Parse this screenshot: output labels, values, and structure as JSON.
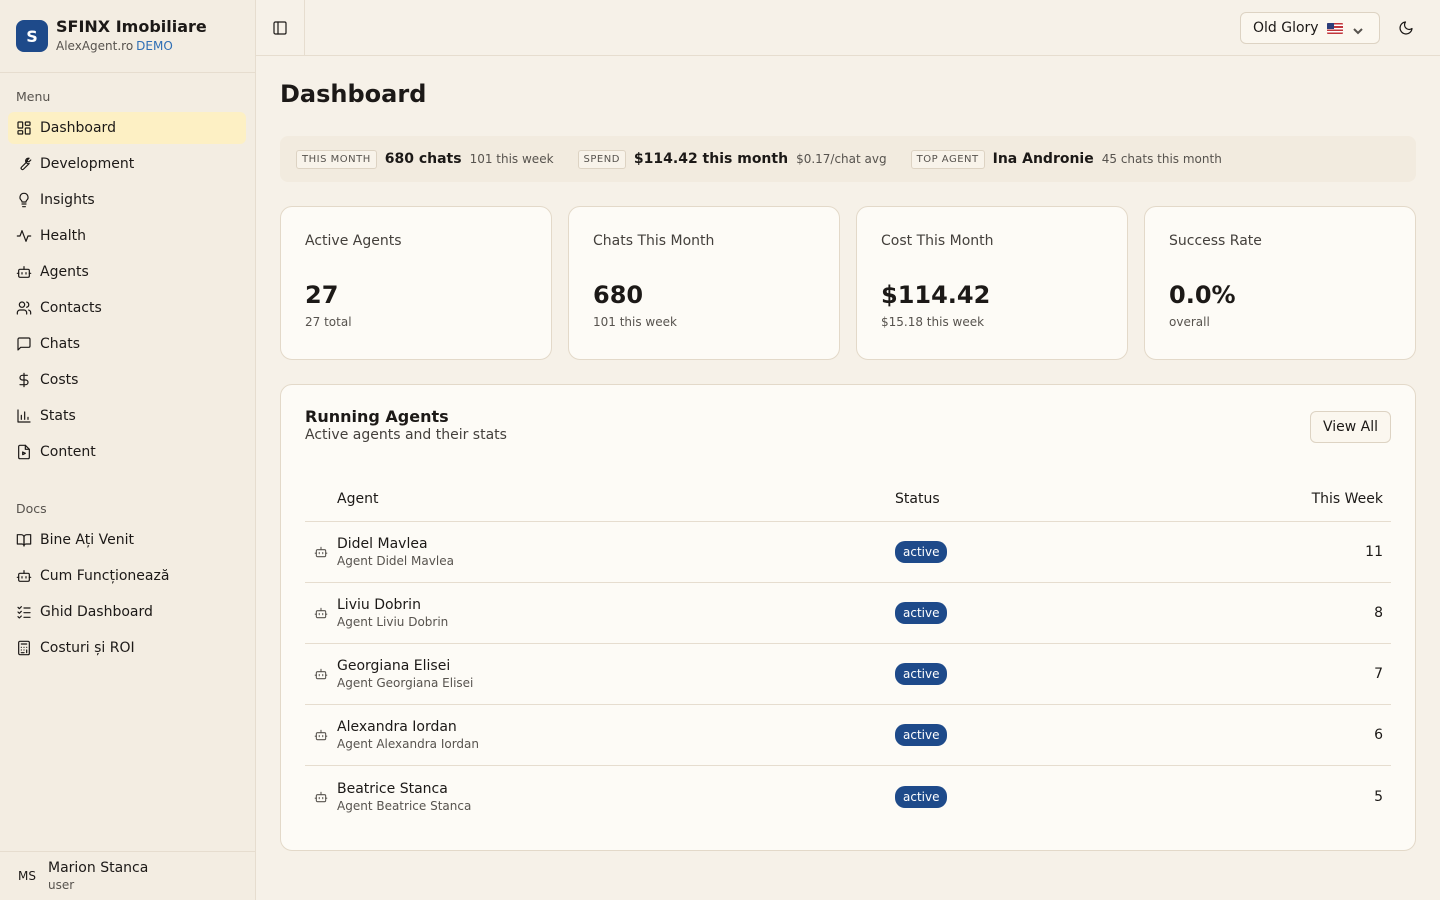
{
  "brand": {
    "logo": "S",
    "name": "SFINX Imobiliare",
    "site": "AlexAgent.ro",
    "tag": "DEMO"
  },
  "nav": {
    "menu_title": "Menu",
    "menu": [
      {
        "label": "Dashboard",
        "icon": "dashboard-icon"
      },
      {
        "label": "Development",
        "icon": "wrench-icon"
      },
      {
        "label": "Insights",
        "icon": "lightbulb-icon"
      },
      {
        "label": "Health",
        "icon": "activity-icon"
      },
      {
        "label": "Agents",
        "icon": "bot-icon"
      },
      {
        "label": "Contacts",
        "icon": "users-icon"
      },
      {
        "label": "Chats",
        "icon": "message-icon"
      },
      {
        "label": "Costs",
        "icon": "dollar-icon"
      },
      {
        "label": "Stats",
        "icon": "bar-chart-icon"
      },
      {
        "label": "Content",
        "icon": "file-icon"
      }
    ],
    "docs_title": "Docs",
    "docs": [
      {
        "label": "Bine Ați Venit",
        "icon": "book-icon"
      },
      {
        "label": "Cum Funcționează",
        "icon": "bot-icon"
      },
      {
        "label": "Ghid Dashboard",
        "icon": "list-checks-icon"
      },
      {
        "label": "Costuri și ROI",
        "icon": "calculator-icon"
      }
    ]
  },
  "user": {
    "initials": "MS",
    "name": "Marion Stanca",
    "role": "user"
  },
  "topbar": {
    "theme": "Old Glory"
  },
  "page": {
    "title": "Dashboard"
  },
  "summary": {
    "month_tag": "THIS MONTH",
    "month_main": "680 chats",
    "month_sub": "101 this week",
    "spend_tag": "SPEND",
    "spend_main": "$114.42 this month",
    "spend_sub": "$0.17/chat avg",
    "top_tag": "TOP AGENT",
    "top_main": "Ina Andronie",
    "top_sub": "45 chats this month"
  },
  "stats": [
    {
      "label": "Active Agents",
      "value": "27",
      "sub": "27 total"
    },
    {
      "label": "Chats This Month",
      "value": "680",
      "sub": "101 this week"
    },
    {
      "label": "Cost This Month",
      "value": "$114.42",
      "sub": "$15.18 this week"
    },
    {
      "label": "Success Rate",
      "value": "0.0%",
      "sub": "overall"
    }
  ],
  "agents": {
    "title": "Running Agents",
    "subtitle": "Active agents and their stats",
    "view_all": "View All",
    "columns": {
      "agent": "Agent",
      "status": "Status",
      "week": "This Week"
    },
    "rows": [
      {
        "name": "Didel Mavlea",
        "sub": "Agent Didel Mavlea",
        "status": "active",
        "week": "11"
      },
      {
        "name": "Liviu Dobrin",
        "sub": "Agent Liviu Dobrin",
        "status": "active",
        "week": "8"
      },
      {
        "name": "Georgiana Elisei",
        "sub": "Agent Georgiana Elisei",
        "status": "active",
        "week": "7"
      },
      {
        "name": "Alexandra Iordan",
        "sub": "Agent Alexandra Iordan",
        "status": "active",
        "week": "6"
      },
      {
        "name": "Beatrice Stanca",
        "sub": "Agent Beatrice Stanca",
        "status": "active",
        "week": "5"
      }
    ]
  },
  "colors": {
    "accent": "#1e4a8a",
    "active_nav": "#fdf0c4",
    "background": "#f6f1e8"
  }
}
